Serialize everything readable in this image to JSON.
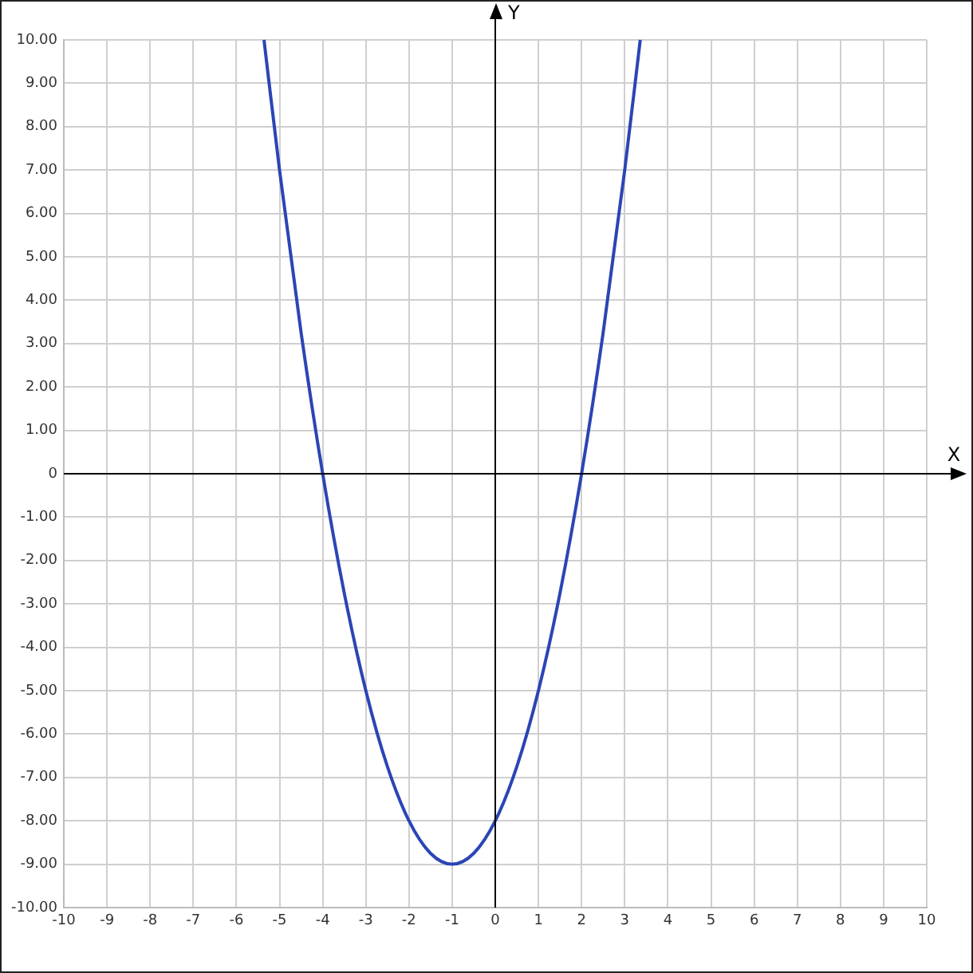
{
  "chart_data": {
    "type": "line",
    "xlabel": "X",
    "ylabel": "Y",
    "marker": "none",
    "grid": true,
    "series": [
      {
        "color": "#2b45b5",
        "x": [
          -5.36,
          -5,
          -4.5,
          -4,
          -3.5,
          -3,
          -2.5,
          -2,
          -1.5,
          -1,
          -0.5,
          0,
          0.5,
          1,
          1.5,
          2,
          2.5,
          3,
          3.36
        ],
        "values": [
          10,
          7,
          3.25,
          0,
          -2.75,
          -5,
          -6.75,
          -8,
          -8.75,
          -9,
          -8.75,
          -8,
          -6.75,
          -5,
          -2.75,
          0,
          3.25,
          7,
          10
        ]
      }
    ],
    "xlim": [
      -10,
      10
    ],
    "ylim": [
      -10,
      10
    ],
    "xticks": [
      -10,
      -9,
      -8,
      -7,
      -6,
      -5,
      -4,
      -3,
      -2,
      -1,
      0,
      1,
      2,
      3,
      4,
      5,
      6,
      7,
      8,
      9,
      10
    ],
    "yticks": [
      {
        "value": -10,
        "label": "-10.00"
      },
      {
        "value": -9,
        "label": "-9.00"
      },
      {
        "value": -8,
        "label": "-8.00"
      },
      {
        "value": -7,
        "label": "-7.00"
      },
      {
        "value": -6,
        "label": "-6.00"
      },
      {
        "value": -5,
        "label": "-5.00"
      },
      {
        "value": -4,
        "label": "-4.00"
      },
      {
        "value": -3,
        "label": "-3.00"
      },
      {
        "value": -2,
        "label": "-2.00"
      },
      {
        "value": -1,
        "label": "-1.00"
      },
      {
        "value": 0,
        "label": "0"
      },
      {
        "value": 1,
        "label": "1.00"
      },
      {
        "value": 2,
        "label": "2.00"
      },
      {
        "value": 3,
        "label": "3.00"
      },
      {
        "value": 4,
        "label": "4.00"
      },
      {
        "value": 5,
        "label": "5.00"
      },
      {
        "value": 6,
        "label": "6.00"
      },
      {
        "value": 7,
        "label": "7.00"
      },
      {
        "value": 8,
        "label": "8.00"
      },
      {
        "value": 9,
        "label": "9.00"
      },
      {
        "value": 10,
        "label": "10.00"
      }
    ]
  }
}
